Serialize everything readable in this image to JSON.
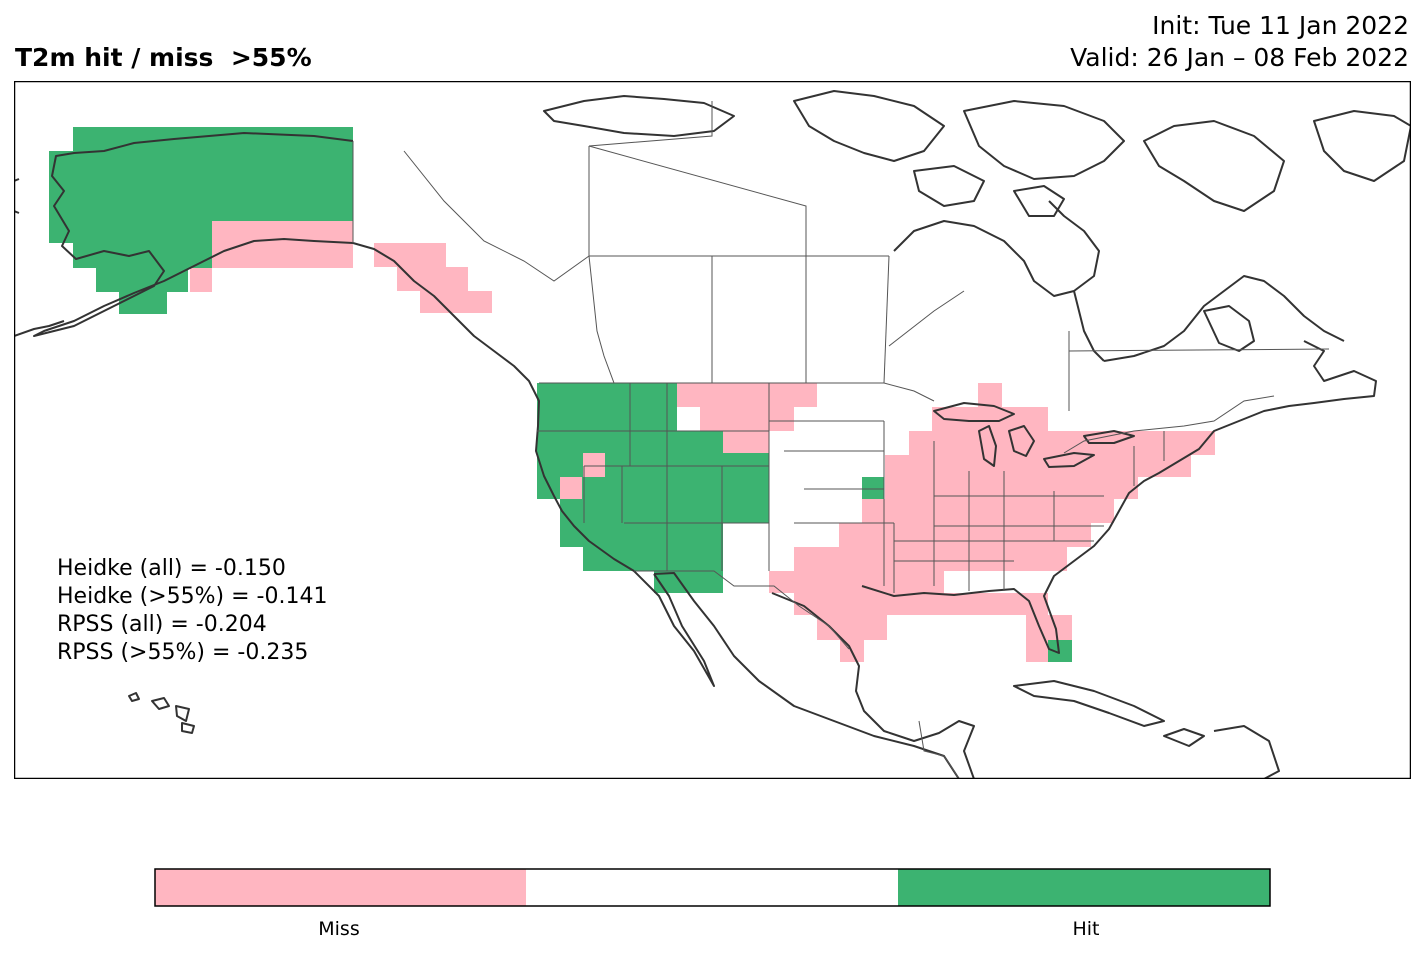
{
  "title": "T2m hit / miss  >55%",
  "init": "Init: Tue 11 Jan 2022",
  "valid": "Valid: 26 Jan – 08 Feb 2022",
  "stats": [
    "Heidke (all) = -0.150",
    "Heidke (>55%) = -0.141",
    "RPSS (all) = -0.204",
    "RPSS (>55%) = -0.235"
  ],
  "legend": {
    "miss_label": "Miss",
    "hit_label": "Hit",
    "colors": {
      "miss": "#ffb6c1",
      "neutral": "#ffffff",
      "hit": "#3cb371"
    }
  },
  "colors": {
    "coast": "#333333",
    "border": "#555555"
  }
}
